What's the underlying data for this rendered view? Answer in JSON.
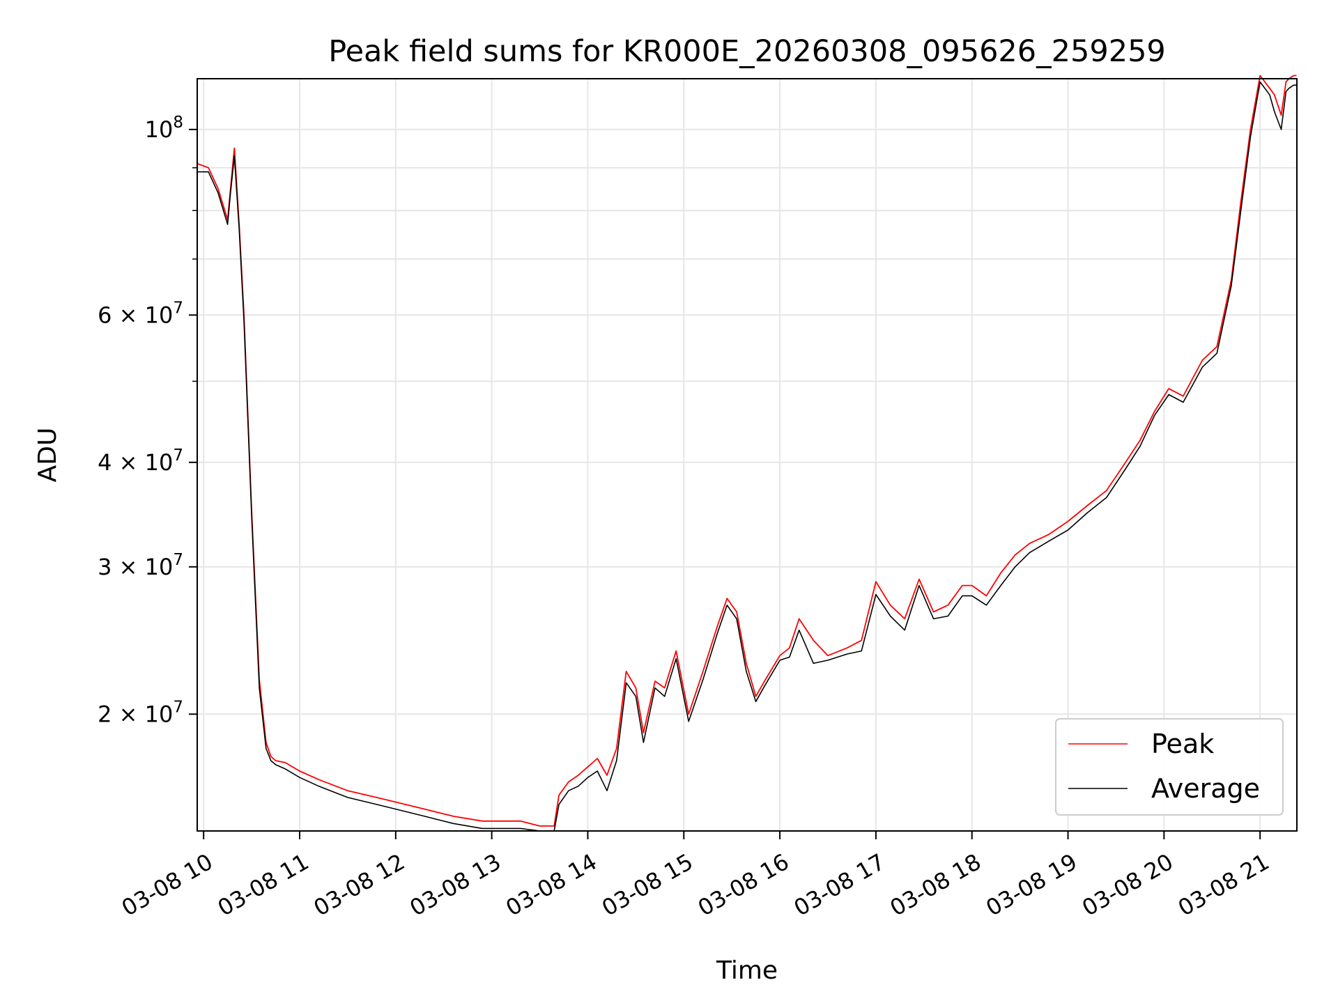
{
  "chart_data": {
    "type": "line",
    "title": "Peak field sums for KR000E_20260308_095626_259259",
    "xlabel": "Time",
    "ylabel": "ADU",
    "y_scale": "log",
    "ylim": [
      14500000,
      115000000
    ],
    "xlim": [
      "03-08 09:56",
      "03-08 21:23"
    ],
    "grid": true,
    "legend_position": "lower-right",
    "x_ticks": [
      "03-08 10",
      "03-08 11",
      "03-08 12",
      "03-08 13",
      "03-08 14",
      "03-08 15",
      "03-08 16",
      "03-08 17",
      "03-08 18",
      "03-08 19",
      "03-08 20",
      "03-08 21"
    ],
    "x_tick_hours": [
      10,
      11,
      12,
      13,
      14,
      15,
      16,
      17,
      18,
      19,
      20,
      21
    ],
    "y_major_ticks": [
      {
        "value": 20000000,
        "mantissa": "2",
        "exp": "7"
      },
      {
        "value": 30000000,
        "mantissa": "3",
        "exp": "7"
      },
      {
        "value": 40000000,
        "mantissa": "4",
        "exp": "7"
      },
      {
        "value": 60000000,
        "mantissa": "6",
        "exp": "7"
      },
      {
        "value": 100000000,
        "mantissa": "",
        "exp": "8"
      }
    ],
    "y_minor_ticks": [
      50000000,
      70000000,
      80000000,
      90000000
    ],
    "series": [
      {
        "name": "Peak",
        "color": "#ff0000",
        "x_hours": [
          9.94,
          10.05,
          10.15,
          10.25,
          10.28,
          10.32,
          10.37,
          10.42,
          10.5,
          10.58,
          10.65,
          10.7,
          10.75,
          10.85,
          11.0,
          11.2,
          11.5,
          11.8,
          12.0,
          12.3,
          12.6,
          12.9,
          13.1,
          13.3,
          13.5,
          13.65,
          13.7,
          13.8,
          13.9,
          14.0,
          14.1,
          14.2,
          14.3,
          14.4,
          14.5,
          14.58,
          14.7,
          14.8,
          14.92,
          15.05,
          15.2,
          15.35,
          15.45,
          15.55,
          15.65,
          15.75,
          15.85,
          16.0,
          16.1,
          16.2,
          16.35,
          16.5,
          16.7,
          16.85,
          17.0,
          17.15,
          17.3,
          17.45,
          17.6,
          17.75,
          17.9,
          18.0,
          18.15,
          18.3,
          18.45,
          18.6,
          18.8,
          19.0,
          19.2,
          19.4,
          19.6,
          19.75,
          19.9,
          20.05,
          20.2,
          20.4,
          20.55,
          20.7,
          20.8,
          20.9,
          21.0,
          21.1,
          21.15,
          21.22,
          21.27,
          21.3,
          21.35,
          21.38
        ],
        "values": [
          91000000,
          90000000,
          85000000,
          78000000,
          85000000,
          95000000,
          77000000,
          60000000,
          35000000,
          22000000,
          18500000,
          17800000,
          17600000,
          17500000,
          17100000,
          16700000,
          16200000,
          15900000,
          15700000,
          15400000,
          15100000,
          14900000,
          14900000,
          14900000,
          14700000,
          14700000,
          16000000,
          16600000,
          16900000,
          17300000,
          17700000,
          16900000,
          18200000,
          22500000,
          21500000,
          19000000,
          21900000,
          21500000,
          23800000,
          20000000,
          22500000,
          25500000,
          27500000,
          26500000,
          23000000,
          21000000,
          22000000,
          23500000,
          24000000,
          26000000,
          24500000,
          23500000,
          24000000,
          24500000,
          28800000,
          27000000,
          26000000,
          29000000,
          26500000,
          27000000,
          28500000,
          28500000,
          27700000,
          29500000,
          31000000,
          32000000,
          32800000,
          34000000,
          35500000,
          37000000,
          40000000,
          42500000,
          46000000,
          49000000,
          48000000,
          53000000,
          55000000,
          66000000,
          82000000,
          100000000,
          116000000,
          112000000,
          110000000,
          104000000,
          114000000,
          115000000,
          116000000,
          116000000
        ]
      },
      {
        "name": "Average",
        "color": "#000000",
        "x_hours": [
          9.94,
          10.05,
          10.15,
          10.25,
          10.28,
          10.32,
          10.37,
          10.42,
          10.5,
          10.58,
          10.65,
          10.7,
          10.75,
          10.85,
          11.0,
          11.2,
          11.5,
          11.8,
          12.0,
          12.3,
          12.6,
          12.9,
          13.1,
          13.3,
          13.5,
          13.65,
          13.7,
          13.8,
          13.9,
          14.0,
          14.1,
          14.2,
          14.3,
          14.4,
          14.5,
          14.58,
          14.7,
          14.8,
          14.92,
          15.05,
          15.2,
          15.35,
          15.45,
          15.55,
          15.65,
          15.75,
          15.85,
          16.0,
          16.1,
          16.2,
          16.35,
          16.5,
          16.7,
          16.85,
          17.0,
          17.15,
          17.3,
          17.45,
          17.6,
          17.75,
          17.9,
          18.0,
          18.15,
          18.3,
          18.45,
          18.6,
          18.8,
          19.0,
          19.2,
          19.4,
          19.6,
          19.75,
          19.9,
          20.05,
          20.2,
          20.4,
          20.55,
          20.7,
          20.8,
          20.9,
          21.0,
          21.1,
          21.15,
          21.22,
          21.27,
          21.3,
          21.35,
          21.38
        ],
        "values": [
          89000000,
          89000000,
          84000000,
          77000000,
          84000000,
          93000000,
          76000000,
          59000000,
          34500000,
          21500000,
          18200000,
          17600000,
          17400000,
          17200000,
          16800000,
          16400000,
          15900000,
          15600000,
          15400000,
          15100000,
          14800000,
          14600000,
          14600000,
          14600000,
          14500000,
          14500000,
          15600000,
          16200000,
          16400000,
          16800000,
          17100000,
          16200000,
          17600000,
          21800000,
          21000000,
          18500000,
          21500000,
          21000000,
          23300000,
          19600000,
          22000000,
          25000000,
          27000000,
          26000000,
          22500000,
          20700000,
          21700000,
          23200000,
          23400000,
          25200000,
          23000000,
          23200000,
          23600000,
          23800000,
          27800000,
          26200000,
          25200000,
          28500000,
          26000000,
          26200000,
          27700000,
          27700000,
          27000000,
          28500000,
          30000000,
          31200000,
          32200000,
          33200000,
          34800000,
          36300000,
          39300000,
          41800000,
          45500000,
          48200000,
          47200000,
          52000000,
          54000000,
          65000000,
          80000000,
          98000000,
          114000000,
          110000000,
          105000000,
          100000000,
          111000000,
          112000000,
          113000000,
          113000000
        ]
      }
    ]
  }
}
